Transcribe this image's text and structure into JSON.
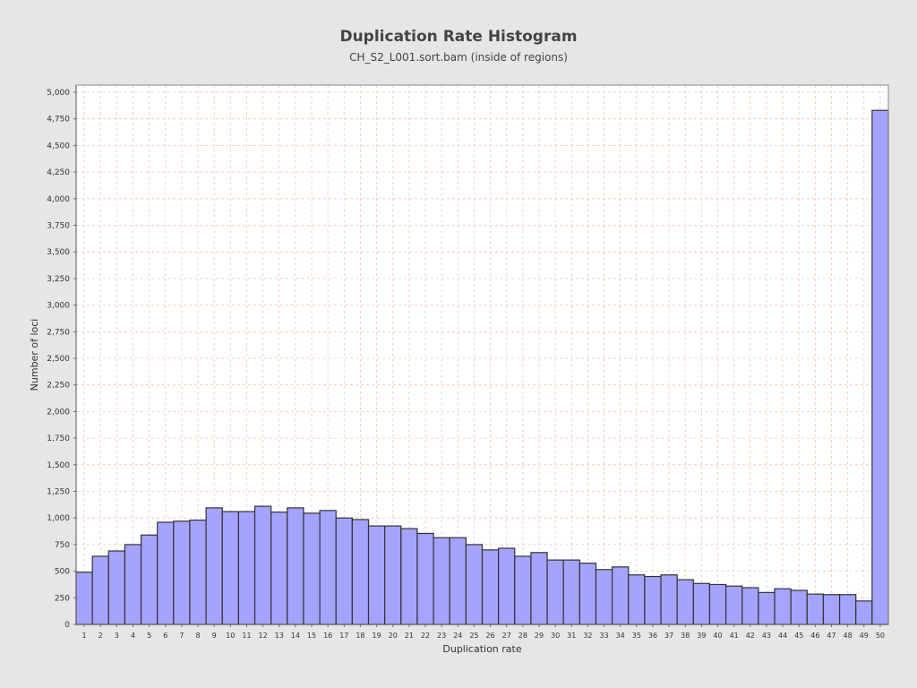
{
  "title": "Duplication Rate Histogram",
  "subtitle": "CH_S2_L001.sort.bam (inside of regions)",
  "chart_data": {
    "type": "bar",
    "title": "Duplication Rate Histogram",
    "subtitle": "CH_S2_L001.sort.bam (inside of regions)",
    "xlabel": "Duplication rate",
    "ylabel": "Number of loci",
    "ylim": [
      0,
      5000
    ],
    "yticks": [
      0,
      250,
      500,
      750,
      1000,
      1250,
      1500,
      1750,
      2000,
      2250,
      2500,
      2750,
      3000,
      3250,
      3500,
      3750,
      4000,
      4250,
      4500,
      4750,
      5000
    ],
    "ytick_labels": [
      "0",
      "250",
      "500",
      "750",
      "1,000",
      "1,250",
      "1,500",
      "1,750",
      "2,000",
      "2,250",
      "2,500",
      "2,750",
      "3,000",
      "3,250",
      "3,500",
      "3,750",
      "4,000",
      "4,250",
      "4,500",
      "4,750",
      "5,000"
    ],
    "categories": [
      "1",
      "2",
      "3",
      "4",
      "5",
      "6",
      "7",
      "8",
      "9",
      "10",
      "11",
      "12",
      "13",
      "14",
      "15",
      "16",
      "17",
      "18",
      "19",
      "20",
      "21",
      "22",
      "23",
      "24",
      "25",
      "26",
      "27",
      "28",
      "29",
      "30",
      "31",
      "32",
      "33",
      "34",
      "35",
      "36",
      "37",
      "38",
      "39",
      "40",
      "41",
      "42",
      "43",
      "44",
      "45",
      "46",
      "47",
      "48",
      "49",
      "50"
    ],
    "values": [
      490,
      640,
      690,
      750,
      840,
      960,
      970,
      980,
      1095,
      1060,
      1060,
      1110,
      1055,
      1095,
      1045,
      1070,
      1000,
      985,
      925,
      925,
      900,
      855,
      815,
      815,
      750,
      700,
      715,
      640,
      675,
      605,
      605,
      575,
      515,
      540,
      465,
      450,
      465,
      420,
      385,
      375,
      360,
      345,
      300,
      335,
      320,
      285,
      280,
      280,
      220,
      4830
    ],
    "grid": true,
    "legend": "none",
    "colors": {
      "bar_fill": "#a4a4ff",
      "bar_stroke": "#333333",
      "grid": "#f0c8b0",
      "plot_bg": "#ffffff",
      "page_bg": "#e6e6e6"
    }
  }
}
